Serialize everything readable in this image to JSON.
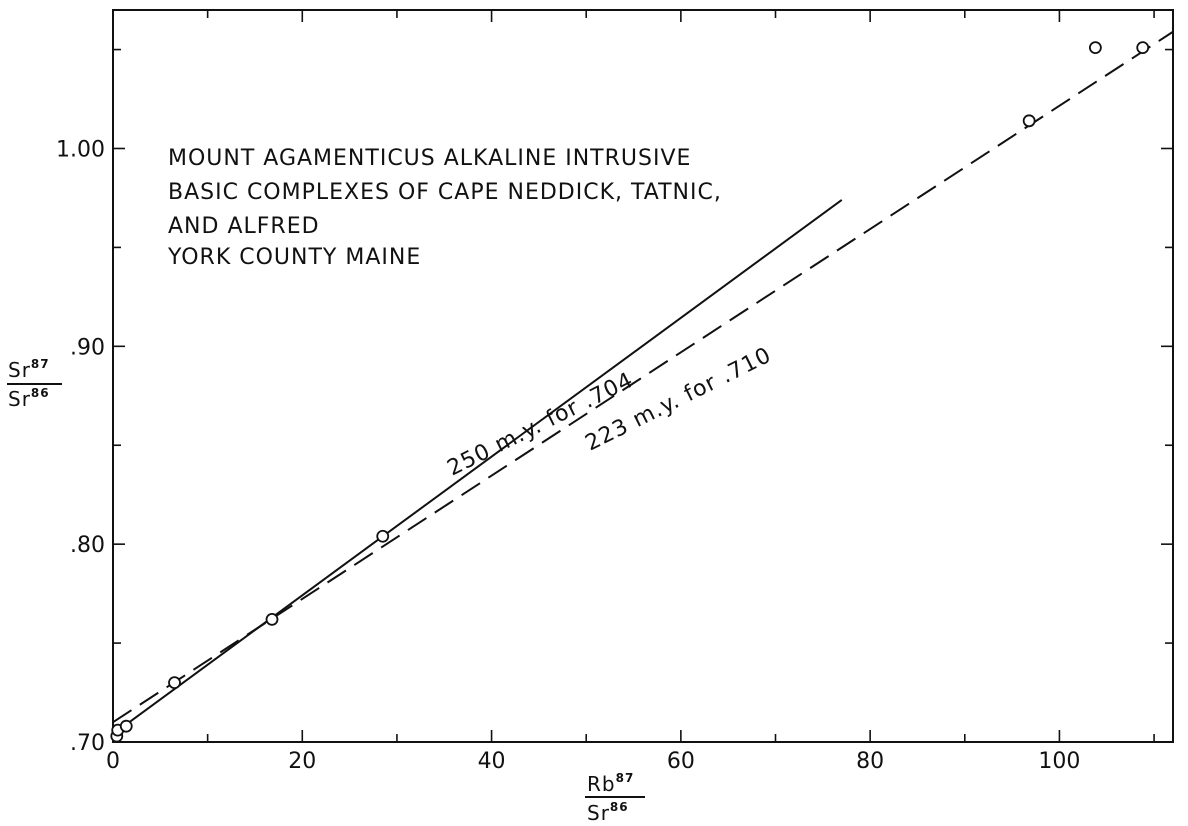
{
  "chart_data": {
    "type": "scatter",
    "title_lines": [
      "MOUNT AGAMENTICUS ALKALINE INTRUSIVE",
      "BASIC COMPLEXES OF CAPE NEDDICK, TATNIC,",
      "AND ALFRED",
      "YORK COUNTY MAINE"
    ],
    "xlabel": {
      "top": "Rb",
      "top_sup": "87",
      "bottom": "Sr",
      "bottom_sup": "86"
    },
    "ylabel": {
      "top": "Sr",
      "top_sup": "87",
      "bottom": "Sr",
      "bottom_sup": "86"
    },
    "xlim": [
      0,
      112
    ],
    "ylim": [
      0.7,
      1.07
    ],
    "x_major_ticks": [
      0,
      20,
      40,
      60,
      80,
      100
    ],
    "x_minor_ticks": [
      10,
      30,
      50,
      70,
      90,
      110
    ],
    "x_tick_labels": [
      "0",
      "20",
      "40",
      "60",
      "80",
      "100"
    ],
    "y_major_ticks": [
      0.7,
      0.8,
      0.9,
      1.0
    ],
    "y_minor_ticks": [
      0.75,
      0.85,
      0.95,
      1.05
    ],
    "y_tick_labels": [
      ".70",
      ".80",
      ".90",
      "1.00"
    ],
    "grid": false,
    "points": [
      {
        "x": 0.4,
        "y": 0.703
      },
      {
        "x": 0.5,
        "y": 0.706
      },
      {
        "x": 1.4,
        "y": 0.708
      },
      {
        "x": 6.5,
        "y": 0.73
      },
      {
        "x": 16.8,
        "y": 0.762
      },
      {
        "x": 28.5,
        "y": 0.804
      },
      {
        "x": 96.8,
        "y": 1.014
      },
      {
        "x": 103.8,
        "y": 1.051
      },
      {
        "x": 108.8,
        "y": 1.051
      }
    ],
    "fit_lines": [
      {
        "label": "250 m.y. for .704",
        "style": "solid",
        "x": [
          0,
          77
        ],
        "y": [
          0.704,
          0.974
        ]
      },
      {
        "label": "223 m.y. for .710",
        "style": "dashed",
        "x": [
          0,
          112
        ],
        "y": [
          0.71,
          1.059
        ]
      }
    ]
  }
}
